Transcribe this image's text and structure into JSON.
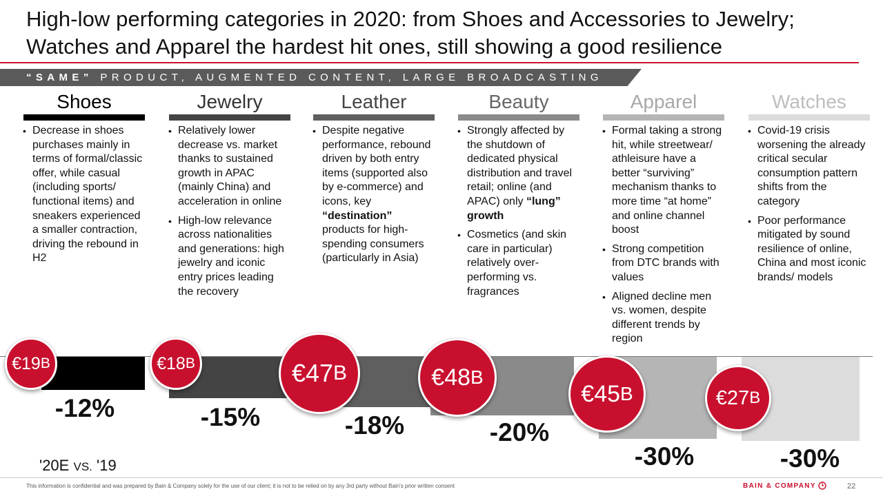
{
  "title": "High-low performing categories in 2020: from Shoes and Accessories to Jewelry; Watches and Apparel the hardest hit ones, still showing a good resilience",
  "banner": {
    "bold_part": "“SAME”",
    "rest": "PRODUCT, AUGMENTED CONTENT, LARGE BROADCASTING"
  },
  "colors": {
    "accent": "#c8102e",
    "banner_bg": "#5a5a5a"
  },
  "categories": [
    {
      "name": "Shoes",
      "color": "#000000",
      "market_value": "€19",
      "unit": "B",
      "change": "-12%",
      "bullets": [
        [
          {
            "t": "Decrease in shoes purchases mainly in terms of formal/classic offer, while casual (including sports/ functional items) and sneakers experienced a smaller contraction, driving the rebound in H2"
          }
        ]
      ]
    },
    {
      "name": "Jewelry",
      "color": "#444444",
      "market_value": "€18",
      "unit": "B",
      "change": "-15%",
      "bullets": [
        [
          {
            "t": "Relatively lower decrease vs. market thanks to sustained growth in APAC (mainly China) and acceleration in online"
          }
        ],
        [
          {
            "t": "High-low relevance across nationalities and generations: high jewelry and iconic entry prices leading the recovery"
          }
        ]
      ]
    },
    {
      "name": "Leather",
      "color": "#5f5f5f",
      "market_value": "€47",
      "unit": "B",
      "change": "-18%",
      "bullets": [
        [
          {
            "t": "Despite negative performance, rebound driven by both entry items (supported also by e-commerce) and icons, key "
          },
          {
            "t": "“destination”",
            "b": true
          },
          {
            "t": " products for high-spending consumers (particularly in Asia)"
          }
        ]
      ]
    },
    {
      "name": "Beauty",
      "color": "#8a8a8a",
      "market_value": "€48",
      "unit": "B",
      "change": "-20%",
      "bullets": [
        [
          {
            "t": "Strongly affected by the shutdown of dedicated physical distribution and travel retail; online (and APAC) only "
          },
          {
            "t": "“lung” growth",
            "b": true
          }
        ],
        [
          {
            "t": "Cosmetics (and skin care in particular) relatively over-performing vs. fragrances"
          }
        ]
      ]
    },
    {
      "name": "Apparel",
      "color": "#b5b5b5",
      "market_value": "€45",
      "unit": "B",
      "change": "-30%",
      "bullets": [
        [
          {
            "t": "Formal taking a strong hit, while streetwear/ athleisure have a better “surviving” mechanism thanks to more time “at home” and online channel boost"
          }
        ],
        [
          {
            "t": "Strong competition from DTC brands with values"
          }
        ],
        [
          {
            "t": "Aligned decline men vs. women, despite different trends by region"
          }
        ]
      ]
    },
    {
      "name": "Watches",
      "color": "#dcdcdc",
      "market_value": "€27",
      "unit": "B",
      "change": "-30%",
      "bullets": [
        [
          {
            "t": "Covid-19 crisis worsening the already critical secular consumption pattern shifts from the category"
          }
        ],
        [
          {
            "t": "Poor performance mitigated by sound resilience of online, China and most iconic brands/ models"
          }
        ]
      ]
    }
  ],
  "legend": {
    "a": "'20E",
    "vs": "VS.",
    "b": "'19"
  },
  "footnote": "This information is confidential and was prepared by Bain & Company solely for the use of our client; it is not to be relied on by any 3rd party without Bain's prior written consent",
  "brand": "BAIN & COMPANY",
  "page_number": "22"
}
